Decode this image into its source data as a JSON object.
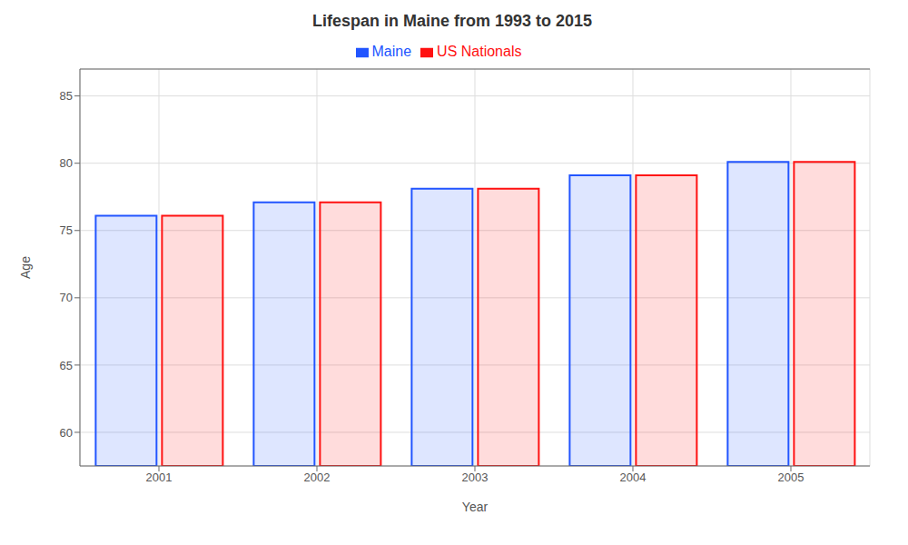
{
  "chart_data": {
    "type": "bar",
    "title": "Lifespan in Maine from 1993 to 2015",
    "xlabel": "Year",
    "ylabel": "Age",
    "categories": [
      "2001",
      "2002",
      "2003",
      "2004",
      "2005"
    ],
    "series": [
      {
        "name": "Maine",
        "color": "#2255ff",
        "values": [
          76.1,
          77.1,
          78.1,
          79.1,
          80.1
        ]
      },
      {
        "name": "US Nationals",
        "color": "#ff1111",
        "values": [
          76.1,
          77.1,
          78.1,
          79.1,
          80.1
        ]
      }
    ],
    "ylim": [
      57.5,
      87
    ],
    "yticks": [
      60,
      65,
      70,
      75,
      80,
      85
    ],
    "grid": true,
    "legend": "top"
  }
}
